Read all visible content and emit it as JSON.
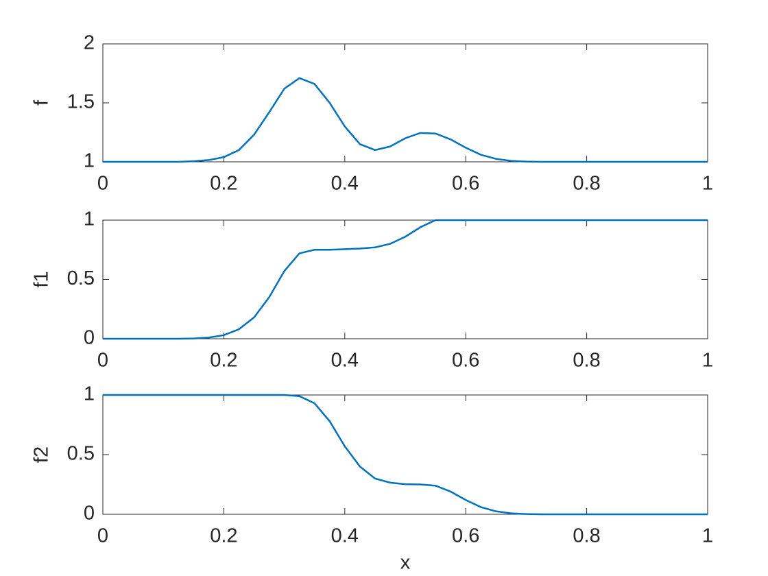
{
  "chart_data": [
    {
      "type": "line",
      "ylabel": "f",
      "color": "#0072bd",
      "x": [
        0,
        0.025,
        0.05,
        0.075,
        0.1,
        0.125,
        0.15,
        0.175,
        0.2,
        0.225,
        0.25,
        0.275,
        0.3,
        0.325,
        0.35,
        0.375,
        0.4,
        0.425,
        0.45,
        0.475,
        0.5,
        0.525,
        0.55,
        0.575,
        0.6,
        0.625,
        0.65,
        0.675,
        0.7,
        0.725,
        0.75,
        0.775,
        0.8,
        0.825,
        0.85,
        0.875,
        0.9,
        0.925,
        0.95,
        0.975,
        1
      ],
      "values": [
        1,
        1,
        1,
        1,
        1,
        1,
        1.005,
        1.015,
        1.04,
        1.1,
        1.23,
        1.42,
        1.62,
        1.71,
        1.66,
        1.5,
        1.3,
        1.15,
        1.1,
        1.13,
        1.2,
        1.245,
        1.24,
        1.19,
        1.12,
        1.06,
        1.025,
        1.008,
        1.002,
        1,
        1,
        1,
        1,
        1,
        1,
        1,
        1,
        1,
        1,
        1,
        1
      ],
      "xlim": [
        0,
        1
      ],
      "xticks": [
        0,
        0.2,
        0.4,
        0.6,
        0.8,
        1
      ],
      "ylim": [
        1,
        2
      ],
      "yticks": [
        1,
        1.5,
        2
      ]
    },
    {
      "type": "line",
      "ylabel": "f1",
      "color": "#0072bd",
      "x": [
        0,
        0.025,
        0.05,
        0.075,
        0.1,
        0.125,
        0.15,
        0.175,
        0.2,
        0.225,
        0.25,
        0.275,
        0.3,
        0.325,
        0.35,
        0.375,
        0.4,
        0.425,
        0.45,
        0.475,
        0.5,
        0.525,
        0.55,
        0.575,
        0.6,
        0.625,
        0.65,
        0.675,
        0.7,
        0.725,
        0.75,
        0.775,
        0.8,
        0.825,
        0.85,
        0.875,
        0.9,
        0.925,
        0.95,
        0.975,
        1
      ],
      "values": [
        0,
        0,
        0,
        0,
        0,
        0,
        0.002,
        0.01,
        0.03,
        0.08,
        0.18,
        0.35,
        0.57,
        0.72,
        0.75,
        0.75,
        0.755,
        0.76,
        0.77,
        0.8,
        0.86,
        0.94,
        1,
        1,
        1,
        1,
        1,
        1,
        1,
        1,
        1,
        1,
        1,
        1,
        1,
        1,
        1,
        1,
        1,
        1,
        1
      ],
      "xlim": [
        0,
        1
      ],
      "xticks": [
        0,
        0.2,
        0.4,
        0.6,
        0.8,
        1
      ],
      "ylim": [
        0,
        1
      ],
      "yticks": [
        0,
        0.5,
        1
      ]
    },
    {
      "type": "line",
      "ylabel": "f2",
      "xlabel": "x",
      "color": "#0072bd",
      "x": [
        0,
        0.025,
        0.05,
        0.075,
        0.1,
        0.125,
        0.15,
        0.175,
        0.2,
        0.225,
        0.25,
        0.275,
        0.3,
        0.325,
        0.35,
        0.375,
        0.4,
        0.425,
        0.45,
        0.475,
        0.5,
        0.525,
        0.55,
        0.575,
        0.6,
        0.625,
        0.65,
        0.675,
        0.7,
        0.725,
        0.75,
        0.775,
        0.8,
        0.825,
        0.85,
        0.875,
        0.9,
        0.925,
        0.95,
        0.975,
        1
      ],
      "values": [
        1,
        1,
        1,
        1,
        1,
        1,
        1,
        1,
        1,
        1,
        1,
        1,
        1,
        0.99,
        0.93,
        0.78,
        0.57,
        0.4,
        0.3,
        0.265,
        0.252,
        0.25,
        0.24,
        0.19,
        0.12,
        0.06,
        0.025,
        0.008,
        0.002,
        0,
        0,
        0,
        0,
        0,
        0,
        0,
        0,
        0,
        0,
        0,
        0
      ],
      "xlim": [
        0,
        1
      ],
      "xticks": [
        0,
        0.2,
        0.4,
        0.6,
        0.8,
        1
      ],
      "ylim": [
        0,
        1
      ],
      "yticks": [
        0,
        0.5,
        1
      ]
    }
  ]
}
